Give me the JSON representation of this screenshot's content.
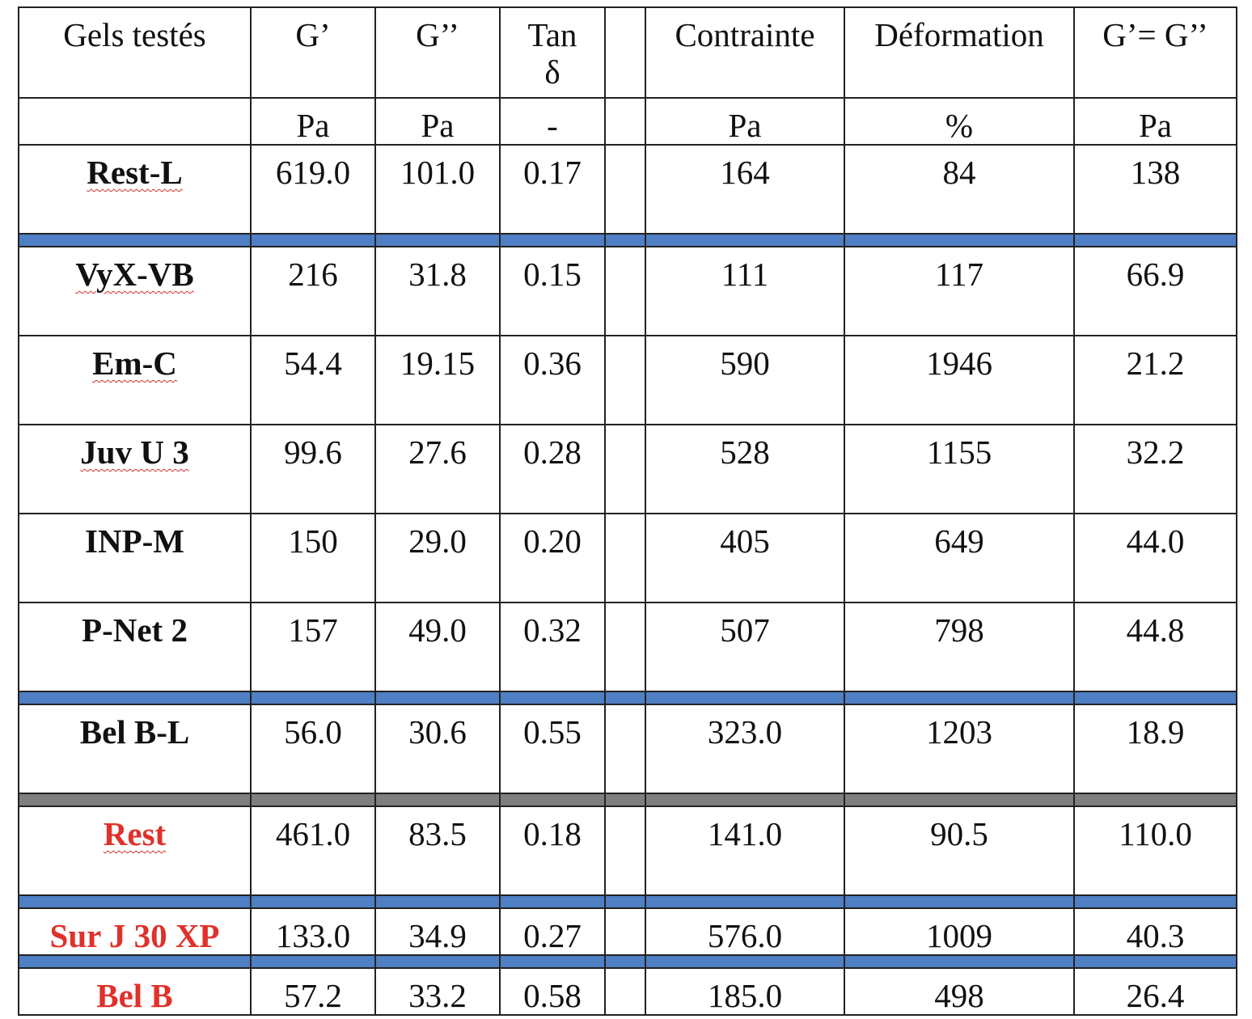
{
  "table": {
    "headers": [
      "Gels testés",
      "G’",
      "G’’",
      "Tan δ",
      "Contrainte",
      "Déformation",
      "G’= G’’"
    ],
    "units": [
      "Pa",
      "Pa",
      "-",
      "Pa",
      "%",
      "Pa"
    ],
    "rows": [
      {
        "name": "Rest-L",
        "values": [
          "619.0",
          "101.0",
          "0.17",
          "164",
          "84",
          "138"
        ]
      },
      {
        "name": "VyX-VB",
        "values": [
          "216",
          "31.8",
          "0.15",
          "111",
          "117",
          "66.9"
        ]
      },
      {
        "name": "Em-C",
        "values": [
          "54.4",
          "19.15",
          "0.36",
          "590",
          "1946",
          "21.2"
        ]
      },
      {
        "name": "Juv U 3",
        "values": [
          "99.6",
          "27.6",
          "0.28",
          "528",
          "1155",
          "32.2"
        ]
      },
      {
        "name": "INP-M",
        "values": [
          "150",
          "29.0",
          "0.20",
          "405",
          "649",
          "44.0"
        ]
      },
      {
        "name": "P-Net 2",
        "values": [
          "157",
          "49.0",
          "0.32",
          "507",
          "798",
          "44.8"
        ]
      },
      {
        "name": "Bel B-L",
        "values": [
          "56.0",
          "30.6",
          "0.55",
          "323.0",
          "1203",
          "18.9"
        ]
      },
      {
        "name": "Rest",
        "values": [
          "461.0",
          "83.5",
          "0.18",
          "141.0",
          "90.5",
          "110.0"
        ]
      },
      {
        "name": "Sur J 30 XP",
        "values": [
          "133.0",
          "34.9",
          "0.27",
          "576.0",
          "1009",
          "40.3"
        ]
      },
      {
        "name": "Bel B",
        "values": [
          "57.2",
          "33.2",
          "0.58",
          "185.0",
          "498",
          "26.4"
        ]
      }
    ]
  }
}
